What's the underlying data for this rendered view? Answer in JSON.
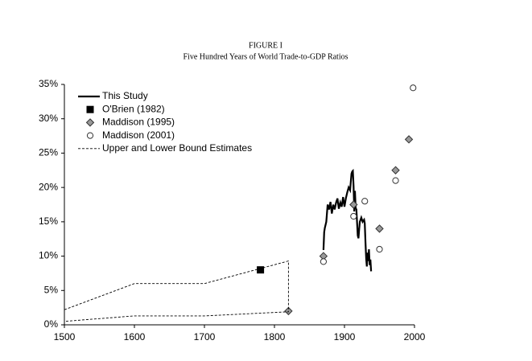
{
  "chart_data": {
    "type": "line",
    "title": "FIGURE I",
    "subtitle": "Five Hundred Years of World Trade-to-GDP Ratios",
    "xlim": [
      1500,
      2000
    ],
    "xticks": [
      1500,
      1600,
      1700,
      1800,
      1900,
      2000
    ],
    "ylim": [
      0,
      35
    ],
    "yticks": [
      {
        "value": 0,
        "label": "0%"
      },
      {
        "value": 5,
        "label": "5%"
      },
      {
        "value": 10,
        "label": "10%"
      },
      {
        "value": 15,
        "label": "15%"
      },
      {
        "value": 20,
        "label": "20%"
      },
      {
        "value": 25,
        "label": "25%"
      },
      {
        "value": 30,
        "label": "30%"
      },
      {
        "value": 35,
        "label": "35%"
      }
    ],
    "legend": "upper-left",
    "series": [
      {
        "name": "This Study",
        "color": "#000000",
        "marker": "line",
        "x": [
          1870,
          1871,
          1872,
          1874,
          1876,
          1878,
          1880,
          1882,
          1884,
          1886,
          1888,
          1890,
          1892,
          1894,
          1896,
          1898,
          1900,
          1902,
          1904,
          1906,
          1908,
          1910,
          1911,
          1912,
          1913,
          1914,
          1915,
          1916,
          1917,
          1918,
          1919,
          1920,
          1921,
          1922,
          1924,
          1926,
          1928,
          1929,
          1930,
          1931,
          1932,
          1933,
          1934,
          1935,
          1936,
          1937,
          1938
        ],
        "values": [
          10.9,
          13.5,
          14.1,
          15.0,
          17.5,
          16.8,
          17.9,
          16.2,
          17.5,
          16.8,
          17.8,
          18.4,
          16.9,
          17.8,
          17.2,
          18.6,
          17.2,
          18.4,
          19.3,
          20.0,
          19.6,
          22.0,
          22.3,
          22.4,
          20.2,
          16.5,
          19.5,
          17.0,
          16.8,
          14.8,
          13.0,
          12.6,
          14.0,
          15.0,
          15.6,
          15.0,
          15.3,
          14.8,
          12.0,
          9.6,
          8.5,
          10.5,
          9.3,
          11.0,
          8.7,
          9.5,
          7.8
        ]
      },
      {
        "name": "O'Brien (1982)",
        "color": "#000000",
        "marker": "square",
        "x": [
          1780
        ],
        "values": [
          8.0
        ]
      },
      {
        "name": "Maddison (1995)",
        "color": "#999999",
        "marker": "diamond",
        "x": [
          1820,
          1870,
          1913,
          1950,
          1973,
          1992
        ],
        "values": [
          2.0,
          10.0,
          17.5,
          14.0,
          22.5,
          27.0
        ]
      },
      {
        "name": "Maddison (2001)",
        "color": "#ffffff",
        "marker": "circle",
        "x": [
          1870,
          1913,
          1929,
          1950,
          1973,
          1998
        ],
        "values": [
          9.2,
          15.8,
          18.0,
          11.0,
          21.0,
          34.5
        ]
      },
      {
        "name": "Upper and Lower Bound Estimates",
        "color": "#000000",
        "marker": "dashed",
        "x": [
          1500,
          1600,
          1700,
          1820,
          1820,
          1740,
          1700,
          1600,
          1500
        ],
        "values": [
          2.2,
          6.0,
          6.0,
          9.3,
          1.9,
          1.5,
          1.3,
          1.3,
          0.5
        ]
      }
    ]
  }
}
